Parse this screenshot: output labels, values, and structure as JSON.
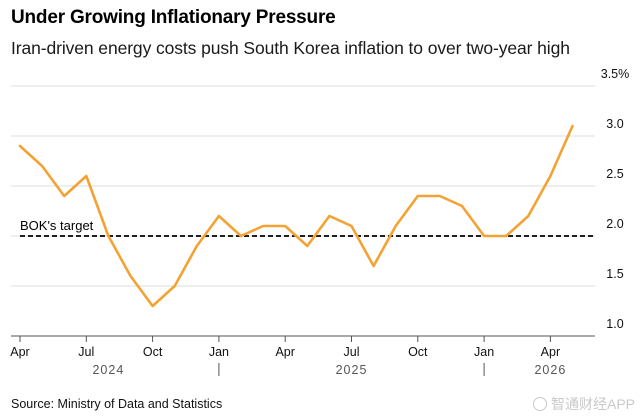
{
  "header": {
    "title": "Under Growing Inflationary Pressure",
    "subtitle": "Iran-driven energy costs push South Korea inflation to over two-year high"
  },
  "footer": {
    "source": "Source: Ministry of Data and Statistics",
    "watermark": "智通财经APP"
  },
  "chart_data": {
    "type": "line",
    "title": "Under Growing Inflationary Pressure",
    "subtitle": "Iran-driven energy costs push South Korea inflation to over two-year high",
    "x": [
      "2024-04",
      "2024-05",
      "2024-06",
      "2024-07",
      "2024-08",
      "2024-09",
      "2024-10",
      "2024-11",
      "2024-12",
      "2025-01",
      "2025-02",
      "2025-03",
      "2025-04",
      "2025-05",
      "2025-06",
      "2025-07",
      "2025-08",
      "2025-09",
      "2025-10",
      "2025-11",
      "2025-12",
      "2026-01",
      "2026-02",
      "2026-03",
      "2026-04",
      "2026-05",
      "2026-06"
    ],
    "series": [
      {
        "values": [
          2.9,
          2.7,
          2.4,
          2.6,
          2.0,
          1.6,
          1.3,
          1.5,
          1.9,
          2.2,
          2.0,
          2.1,
          2.1,
          1.9,
          2.2,
          2.1,
          1.7,
          2.1,
          2.4,
          2.4,
          2.3,
          2.0,
          2.0,
          2.2,
          2.6,
          3.1,
          null
        ]
      }
    ],
    "reference_line": {
      "label": "BOK's target",
      "value": 2.0,
      "style": "dashed"
    },
    "ylim": [
      1.0,
      3.5
    ],
    "yticks": [
      "1.0",
      "1.5",
      "2.0",
      "2.5",
      "3.0",
      "3.5%"
    ],
    "ytick_values": [
      1.0,
      1.5,
      2.0,
      2.5,
      3.0,
      3.5
    ],
    "xticks": [
      {
        "label": "Apr",
        "index": 0
      },
      {
        "label": "Jul",
        "index": 3
      },
      {
        "label": "Oct",
        "index": 6
      },
      {
        "label": "Jan",
        "index": 9
      },
      {
        "label": "Apr",
        "index": 12
      },
      {
        "label": "Jul",
        "index": 15
      },
      {
        "label": "Oct",
        "index": 18
      },
      {
        "label": "Jan",
        "index": 21
      },
      {
        "label": "Apr",
        "index": 24
      }
    ],
    "years": [
      {
        "label": "2024",
        "center": 4
      },
      {
        "label": "2025",
        "center": 15
      },
      {
        "label": "2026",
        "center": 24
      }
    ],
    "grid": true,
    "y_axis_side": "right",
    "colors": {
      "line": "#f4a233",
      "reference": "#000000",
      "grid": "#dcdcdc"
    }
  }
}
